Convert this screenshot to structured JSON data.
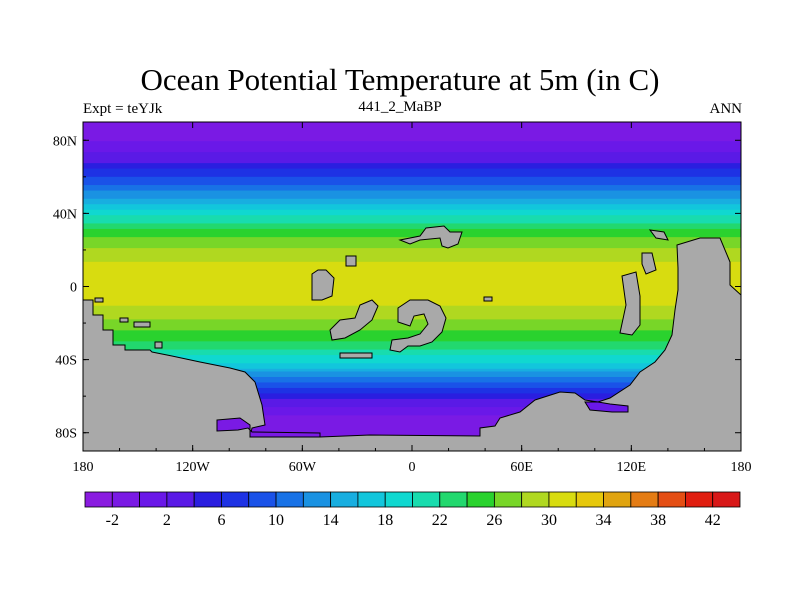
{
  "header": {
    "title": "Ocean Potential Temperature at 5m (in C)",
    "left_label": "Expt = teYJk",
    "center_label": "441_2_MaBP",
    "right_label": "ANN"
  },
  "chart_data": {
    "type": "heatmap",
    "title": "Ocean Potential Temperature at 5m (in C)",
    "xlabel": "",
    "ylabel": "",
    "x_ticks": [
      "180",
      "120W",
      "60W",
      "0",
      "60E",
      "120E",
      "180"
    ],
    "x_tick_values": [
      -180,
      -120,
      -60,
      0,
      60,
      120,
      180
    ],
    "y_ticks": [
      "80N",
      "40N",
      "0",
      "40S",
      "80S"
    ],
    "y_tick_values": [
      80,
      40,
      0,
      -40,
      -80
    ],
    "xlim": [
      -180,
      180
    ],
    "ylim": [
      -90,
      90
    ],
    "land_color": "#a9a9a9",
    "colorbar": {
      "levels": [
        -4,
        -2,
        0,
        2,
        4,
        6,
        8,
        10,
        12,
        14,
        16,
        18,
        20,
        22,
        24,
        26,
        28,
        30,
        32,
        34,
        36,
        38,
        40,
        42,
        44
      ],
      "labels": [
        "-2",
        "2",
        "6",
        "10",
        "14",
        "18",
        "22",
        "26",
        "30",
        "34",
        "38",
        "42"
      ],
      "label_values": [
        -2,
        2,
        6,
        10,
        14,
        18,
        22,
        26,
        30,
        34,
        38,
        42
      ],
      "colors": [
        "#8a1ce0",
        "#7a1ae4",
        "#6a18e8",
        "#5a1ae6",
        "#2a1ee0",
        "#1e32e4",
        "#1a52e8",
        "#1872e6",
        "#1a92e2",
        "#18aee0",
        "#12c6dc",
        "#10d8d0",
        "#18dcae",
        "#22d86e",
        "#2ad22e",
        "#78d628",
        "#b0d820",
        "#d8dc10",
        "#e6c80c",
        "#e0a410",
        "#e47c14",
        "#e44e14",
        "#e01e10",
        "#d81818"
      ]
    },
    "zonal_profile": {
      "lat": [
        90,
        80,
        70,
        60,
        50,
        40,
        30,
        20,
        10,
        0,
        -10,
        -20,
        -30,
        -40,
        -50,
        -60,
        -70,
        -80,
        -90
      ],
      "temp_c": [
        -2,
        0,
        3,
        8,
        13,
        19,
        25,
        28.5,
        31,
        31.5,
        30,
        27.5,
        24,
        19,
        12,
        5,
        0,
        -2,
        -2
      ]
    }
  }
}
